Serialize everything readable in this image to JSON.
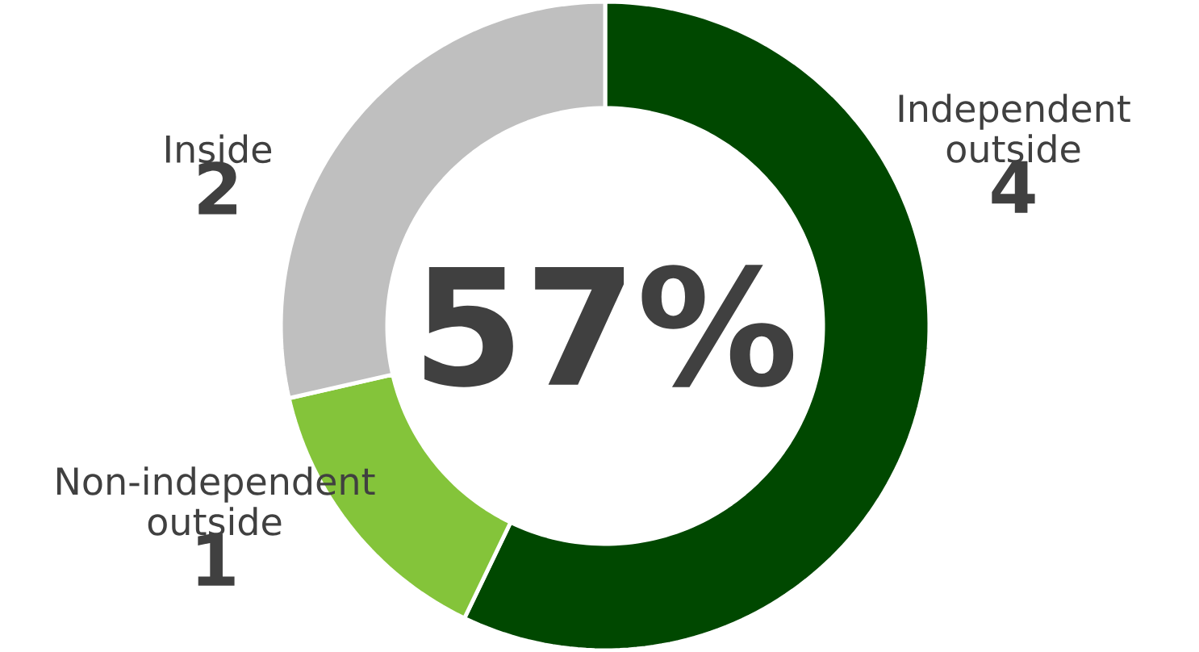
{
  "chart_data": {
    "type": "donut",
    "categories": [
      "Independent outside",
      "Non-independent outside",
      "Inside"
    ],
    "values": [
      4,
      1,
      2
    ],
    "colors": [
      "#004800",
      "#84c43a",
      "#bfbfbf"
    ],
    "data_labels": true,
    "annotations": [
      "57%"
    ]
  }
}
